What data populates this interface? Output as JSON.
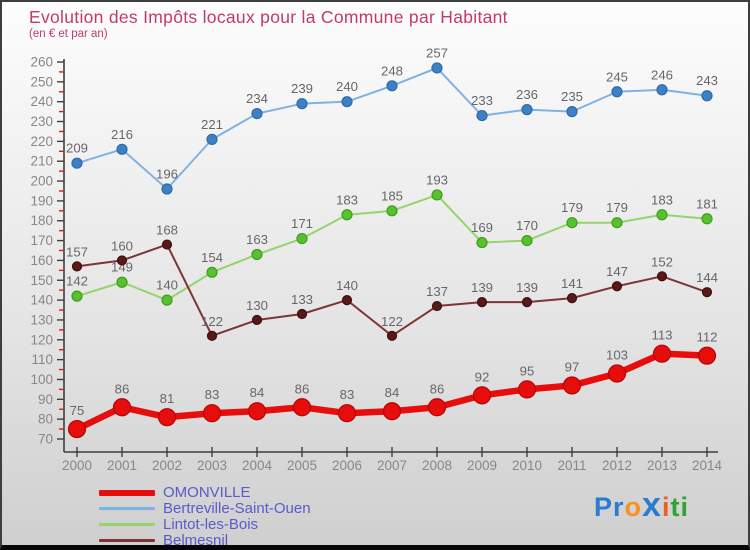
{
  "header": {
    "title": "Evolution des Impôts locaux pour la Commune par Habitant",
    "subtitle": "(en € et par an)"
  },
  "chart_data": {
    "type": "line",
    "title": "Evolution des Impôts locaux pour la Commune par Habitant",
    "subtitle": "(en € et par an)",
    "x": [
      2000,
      2001,
      2002,
      2003,
      2004,
      2005,
      2006,
      2007,
      2008,
      2009,
      2010,
      2011,
      2012,
      2013,
      2014
    ],
    "ylim": [
      70,
      260
    ],
    "y_tick_step": 10,
    "grid": false,
    "legend_position": "bottom-left",
    "value_label_color": "#676767",
    "axis": {
      "axis_color": "#3f3f3f",
      "tick_label_color": "#878787",
      "minor_tick_color": "#cc1f1f"
    },
    "series": [
      {
        "name": "OMONVILLE",
        "values": [
          75,
          86,
          81,
          83,
          84,
          86,
          83,
          84,
          86,
          92,
          95,
          97,
          103,
          113,
          112
        ],
        "color": "#e80d0d",
        "line_color": "#e80d0d",
        "marker_color": "#e80d0d",
        "marker_stroke": "#b50505",
        "line_width": 6.5,
        "marker_radius": 8.5,
        "swatch_height": 6
      },
      {
        "name": "Bertreville-Saint-Ouen",
        "values": [
          209,
          216,
          196,
          221,
          234,
          239,
          240,
          248,
          257,
          233,
          236,
          235,
          245,
          246,
          243
        ],
        "color": "#3e80c6",
        "line_color": "#7fb2e2",
        "marker_color": "#3e80c6",
        "marker_stroke": "#2e6ca9",
        "line_width": 2,
        "marker_radius": 5,
        "swatch_height": 3
      },
      {
        "name": "Lintot-les-Bois",
        "values": [
          142,
          149,
          140,
          154,
          163,
          171,
          183,
          185,
          193,
          169,
          170,
          179,
          179,
          183,
          181
        ],
        "color": "#58c12f",
        "line_color": "#95d46d",
        "marker_color": "#58c12f",
        "marker_stroke": "#3f9e1c",
        "line_width": 2,
        "marker_radius": 5,
        "swatch_height": 3
      },
      {
        "name": "Belmesnil",
        "values": [
          157,
          160,
          168,
          122,
          130,
          133,
          140,
          122,
          137,
          139,
          139,
          141,
          147,
          152,
          144
        ],
        "color": "#581919",
        "line_color": "#7e3434",
        "marker_color": "#581919",
        "marker_stroke": "#3f0e0e",
        "line_width": 2,
        "marker_radius": 4.5,
        "swatch_height": 3
      }
    ]
  },
  "logo": {
    "text": "Proxiti",
    "letters": [
      {
        "ch": "P",
        "color": "#2b7bd0",
        "size": 27
      },
      {
        "ch": "r",
        "color": "#2b7bd0",
        "size": 27
      },
      {
        "ch": "o",
        "color": "#f6921e",
        "size": 27
      },
      {
        "ch": "x",
        "color": "#2b7bd0",
        "size": 34
      },
      {
        "ch": "i",
        "color": "#e8641e",
        "size": 27
      },
      {
        "ch": "t",
        "color": "#31a331",
        "size": 27
      },
      {
        "ch": "i",
        "color": "#31a331",
        "size": 27
      }
    ]
  }
}
